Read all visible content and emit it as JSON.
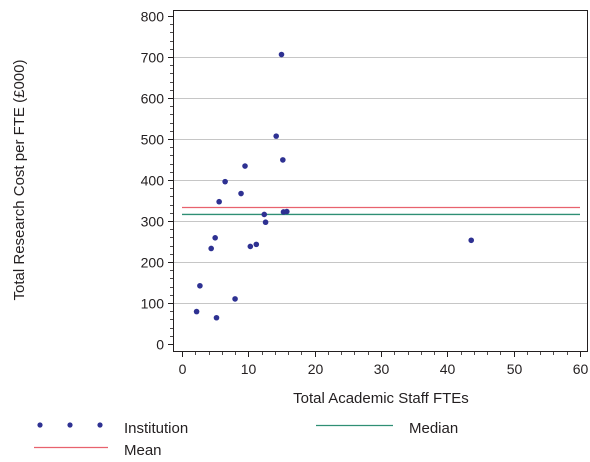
{
  "chart_data": {
    "type": "scatter",
    "title": "",
    "xlabel": "Total Academic Staff FTEs",
    "ylabel": "Total Research Cost per FTE (£000)",
    "xlim": [
      0,
      60
    ],
    "ylim": [
      0,
      800
    ],
    "x_ticks": [
      0,
      10,
      20,
      30,
      40,
      50,
      60
    ],
    "y_ticks": [
      0,
      100,
      200,
      300,
      400,
      500,
      600,
      700,
      800
    ],
    "grid": "horizontal",
    "legend_position": "bottom",
    "series": [
      {
        "name": "Institution",
        "kind": "points",
        "color": "#2e3192",
        "points": [
          [
            2.2,
            79
          ],
          [
            2.7,
            142
          ],
          [
            4.4,
            233
          ],
          [
            5.0,
            259
          ],
          [
            5.2,
            64
          ],
          [
            5.6,
            347
          ],
          [
            6.5,
            396
          ],
          [
            8.0,
            110
          ],
          [
            8.9,
            367
          ],
          [
            9.5,
            434
          ],
          [
            10.3,
            238
          ],
          [
            11.2,
            243
          ],
          [
            12.4,
            316
          ],
          [
            12.6,
            297
          ],
          [
            14.2,
            507
          ],
          [
            15.0,
            706
          ],
          [
            15.2,
            449
          ],
          [
            15.3,
            322
          ],
          [
            15.8,
            323
          ],
          [
            43.6,
            253
          ]
        ]
      },
      {
        "name": "Mean",
        "kind": "hline",
        "color": "#e8626e",
        "value": 333
      },
      {
        "name": "Median",
        "kind": "hline",
        "color": "#2f8f74",
        "value": 316
      }
    ]
  }
}
